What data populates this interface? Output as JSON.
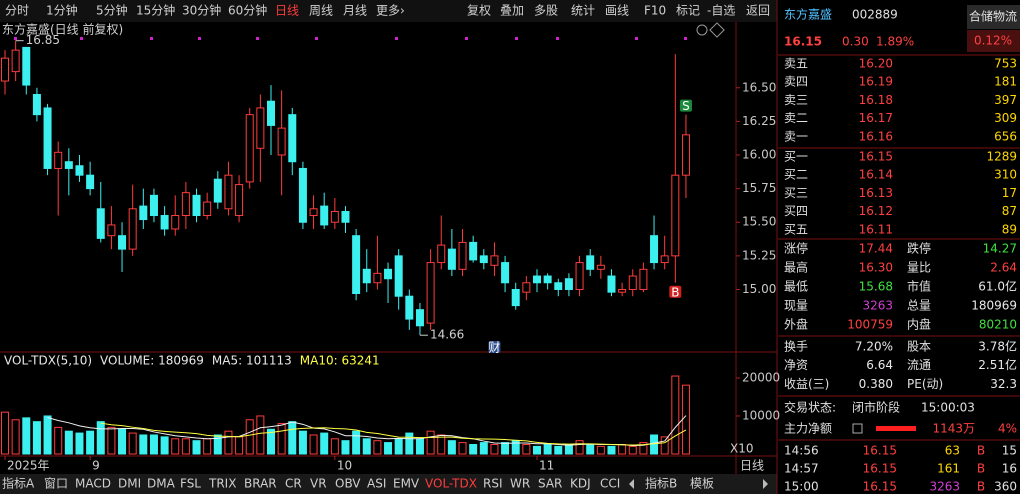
{
  "toolbar": {
    "periods": [
      "分时",
      "1分钟",
      "5分钟",
      "15分钟",
      "30分钟",
      "60分钟",
      "日线",
      "周线",
      "月线",
      "更多›"
    ],
    "active": 6,
    "tools": [
      "复权",
      "叠加",
      "多股",
      "统计",
      "画线",
      "F10",
      "标记",
      "-自选",
      "返回"
    ]
  },
  "chart_data": [
    {
      "type": "candlestick",
      "title": "东方嘉盛(日线 前复权)",
      "up_color": "#ff3c3c",
      "down_color": "#3cf0f0",
      "categories": [
        "2025年",
        null,
        null,
        null,
        null,
        null,
        null,
        null,
        "9",
        null,
        null,
        null,
        null,
        null,
        null,
        null,
        null,
        null,
        null,
        null,
        null,
        null,
        null,
        null,
        null,
        null,
        null,
        null,
        null,
        null,
        null,
        "10",
        null,
        null,
        null,
        null,
        null,
        null,
        null,
        null,
        null,
        null,
        null,
        null,
        null,
        null,
        null,
        null,
        null,
        null,
        "11",
        null,
        null,
        null,
        null,
        null,
        null,
        null,
        null,
        null,
        null,
        null,
        null,
        null,
        null
      ],
      "open": [
        16.55,
        16.62,
        16.8,
        16.45,
        16.35,
        15.9,
        15.95,
        15.92,
        15.85,
        15.6,
        15.4,
        15.4,
        15.3,
        15.62,
        15.7,
        15.55,
        15.45,
        15.55,
        15.7,
        15.55,
        15.82,
        15.6,
        15.55,
        15.8,
        16.05,
        16.4,
        16.0,
        16.3,
        15.9,
        15.55,
        15.62,
        15.5,
        15.58,
        15.4,
        15.15,
        15.05,
        15.15,
        15.25,
        14.95,
        14.85,
        14.75,
        15.2,
        15.3,
        15.15,
        15.35,
        15.25,
        15.18,
        15.2,
        15.0,
        14.98,
        15.1,
        15.1,
        15.05,
        15.08,
        15.0,
        15.25,
        15.15,
        15.1,
        14.98,
        15.0,
        15.0,
        15.4,
        15.2,
        15.25,
        15.85
      ],
      "high": [
        16.78,
        16.85,
        16.8,
        16.5,
        16.38,
        16.1,
        16.05,
        16.0,
        15.95,
        15.8,
        15.62,
        15.5,
        15.78,
        15.75,
        15.75,
        15.62,
        15.7,
        15.8,
        15.75,
        15.72,
        15.88,
        15.95,
        15.85,
        16.35,
        16.45,
        16.52,
        16.48,
        16.35,
        15.95,
        15.7,
        15.72,
        15.68,
        15.62,
        15.45,
        15.3,
        15.4,
        15.2,
        15.3,
        15.0,
        14.9,
        15.3,
        15.55,
        15.45,
        15.45,
        15.4,
        15.3,
        15.35,
        15.25,
        15.05,
        15.1,
        15.15,
        15.12,
        15.08,
        15.12,
        15.25,
        15.3,
        15.25,
        15.15,
        15.05,
        15.15,
        15.2,
        15.55,
        15.4,
        16.75,
        16.3
      ],
      "low": [
        16.45,
        16.55,
        16.45,
        16.25,
        15.85,
        15.55,
        15.7,
        15.8,
        15.7,
        15.35,
        15.3,
        15.13,
        15.25,
        15.45,
        15.5,
        15.4,
        15.4,
        15.45,
        15.5,
        15.52,
        15.6,
        15.55,
        15.5,
        15.75,
        15.8,
        16.0,
        15.7,
        15.85,
        15.45,
        15.45,
        15.45,
        15.45,
        15.42,
        14.92,
        14.98,
        15.0,
        14.9,
        14.85,
        14.7,
        14.66,
        14.7,
        15.15,
        15.1,
        15.1,
        15.2,
        15.15,
        15.1,
        14.98,
        14.85,
        14.92,
        14.98,
        15.0,
        14.95,
        14.95,
        14.95,
        15.1,
        15.08,
        14.95,
        14.95,
        14.95,
        14.98,
        15.15,
        15.15,
        15.05,
        15.68
      ],
      "close": [
        16.72,
        16.78,
        16.52,
        16.3,
        15.9,
        16.02,
        15.9,
        15.85,
        15.75,
        15.38,
        15.48,
        15.3,
        15.6,
        15.52,
        15.55,
        15.45,
        15.55,
        15.72,
        15.55,
        15.65,
        15.65,
        15.85,
        15.78,
        16.3,
        16.35,
        16.22,
        16.2,
        15.95,
        15.5,
        15.6,
        15.48,
        15.58,
        15.5,
        14.97,
        15.05,
        15.12,
        15.08,
        14.95,
        14.78,
        14.73,
        15.2,
        15.33,
        15.15,
        15.35,
        15.22,
        15.2,
        15.25,
        15.05,
        14.88,
        15.05,
        15.05,
        15.05,
        15.0,
        15.0,
        15.2,
        15.15,
        15.18,
        14.98,
        15.0,
        15.1,
        15.15,
        15.2,
        15.25,
        15.85,
        16.15
      ],
      "ylim": [
        14.55,
        16.87
      ],
      "yticks": [
        {
          "value": 16.5,
          "label": "16.50"
        },
        16.25,
        {
          "value": 16,
          "label": "16.00"
        },
        15.75,
        {
          "value": 15.5,
          "label": "15.50"
        },
        15.25,
        {
          "value": 15,
          "label": "15.00"
        }
      ],
      "annotations": [
        {
          "index": 1,
          "value": 16.85,
          "at": "high"
        },
        {
          "index": 39,
          "value": 14.66,
          "at": "low"
        }
      ],
      "markers": [
        {
          "label": "S",
          "index": 64,
          "at": "high",
          "color": "#1a8a3a"
        },
        {
          "label": "B",
          "index": 63,
          "at": "low",
          "color": "#d22020"
        },
        {
          "label": "财",
          "index": 46,
          "at": "bottom",
          "color": "#2a4a8a"
        }
      ]
    },
    {
      "type": "bar",
      "title": "VOL-TDX(5,10)",
      "readouts": [
        {
          "text": "VOLUME: 180969",
          "color": "#e8e8e8"
        },
        {
          "text": "MA5: 101113",
          "color": "#e8e8e8"
        },
        {
          "text": "MA10: 63241",
          "color": "#ffff40"
        }
      ],
      "values": [
        11000,
        9000,
        9500,
        8500,
        10000,
        7000,
        6000,
        5500,
        6000,
        8500,
        7000,
        6500,
        5500,
        5000,
        5000,
        4500,
        4000,
        4000,
        3500,
        4000,
        5000,
        6000,
        4500,
        9000,
        10000,
        6500,
        8000,
        8500,
        6000,
        5000,
        5500,
        4000,
        3500,
        6000,
        4000,
        3500,
        3000,
        4000,
        5500,
        4000,
        6000,
        5000,
        3500,
        3000,
        2500,
        3000,
        2500,
        3000,
        3500,
        2500,
        2000,
        2500,
        2000,
        2500,
        3500,
        2500,
        2000,
        2000,
        2500,
        2000,
        3000,
        5000,
        4500,
        20500,
        18097
      ],
      "series": [
        {
          "name": "MA5",
          "color": "#f0f0f0",
          "values": [
            null,
            null,
            null,
            null,
            9600,
            8800,
            8200,
            7400,
            6900,
            6600,
            6600,
            6700,
            6700,
            6500,
            5800,
            5300,
            4800,
            4500,
            4200,
            4000,
            4100,
            4500,
            4600,
            5700,
            6900,
            7200,
            7600,
            8400,
            7800,
            6800,
            6600,
            5800,
            4800,
            4800,
            4600,
            4200,
            4000,
            4100,
            4000,
            4000,
            4500,
            4900,
            4800,
            4300,
            4000,
            3400,
            2900,
            2800,
            2900,
            2900,
            2700,
            2700,
            2500,
            2300,
            2500,
            2600,
            2500,
            2500,
            2500,
            2200,
            2300,
            2900,
            3400,
            7000,
            10111
          ]
        },
        {
          "name": "MA10",
          "color": "#ffff40",
          "values": [
            null,
            null,
            null,
            null,
            null,
            null,
            null,
            null,
            null,
            8100,
            7700,
            7450,
            7050,
            6700,
            6200,
            5950,
            5750,
            5600,
            5350,
            4900,
            4700,
            4650,
            4550,
            4950,
            5450,
            5650,
            6050,
            6500,
            6750,
            6850,
            6900,
            6700,
            6600,
            6300,
            5700,
            5400,
            4900,
            4450,
            4400,
            4300,
            4350,
            4450,
            4450,
            4150,
            4000,
            3950,
            3900,
            3800,
            3600,
            3450,
            3050,
            2800,
            2650,
            2600,
            2700,
            2650,
            2600,
            2500,
            2400,
            2350,
            2450,
            2700,
            2950,
            4750,
            6324
          ]
        }
      ],
      "ylim": [
        0,
        23400
      ],
      "yticks": [
        20000,
        10000
      ],
      "scale_label": "X10",
      "period_label": "日线"
    }
  ],
  "tabs": {
    "items": [
      "指标A",
      "窗口",
      "MACD",
      "DMI",
      "DMA",
      "FSL",
      "TRIX",
      "BRAR",
      "CR",
      "VR",
      "OBV",
      "ASI",
      "EMV",
      "VOL-TDX",
      "RSI",
      "WR",
      "SAR",
      "KDJ",
      "CCI",
      "指标B",
      "模板"
    ],
    "active": 13
  },
  "quote": {
    "name": "东方嘉盛",
    "code": "002889",
    "sector": "合储物流",
    "sector_change": "0.12%",
    "price": "16.15",
    "change": "0.30",
    "change_pct": "1.89%",
    "asks": [
      {
        "label": "卖五",
        "price": "16.20",
        "volume": "753"
      },
      {
        "label": "卖四",
        "price": "16.19",
        "volume": "181"
      },
      {
        "label": "卖三",
        "price": "16.18",
        "volume": "397"
      },
      {
        "label": "卖二",
        "price": "16.17",
        "volume": "309"
      },
      {
        "label": "卖一",
        "price": "16.16",
        "volume": "656"
      }
    ],
    "bids": [
      {
        "label": "买一",
        "price": "16.15",
        "volume": "1289"
      },
      {
        "label": "买二",
        "price": "16.14",
        "volume": "310"
      },
      {
        "label": "买三",
        "price": "16.13",
        "volume": "17"
      },
      {
        "label": "买四",
        "price": "16.12",
        "volume": "87"
      },
      {
        "label": "买五",
        "price": "16.11",
        "volume": "89"
      }
    ],
    "stats": [
      [
        {
          "label": "涨停",
          "value": "17.44",
          "color": "#ff4040"
        },
        {
          "label": "跌停",
          "value": "14.27",
          "color": "#40e040"
        }
      ],
      [
        {
          "label": "最高",
          "value": "16.30",
          "color": "#ff4040"
        },
        {
          "label": "量比",
          "value": "2.64",
          "color": "#ff4040"
        }
      ],
      [
        {
          "label": "最低",
          "value": "15.68",
          "color": "#40e040"
        },
        {
          "label": "市值",
          "value": "61.0亿",
          "color": "#e8e8e8"
        }
      ],
      [
        {
          "label": "现量",
          "value": "3263",
          "color": "#d040d0"
        },
        {
          "label": "总量",
          "value": "180969",
          "color": "#e8e8e8"
        }
      ],
      [
        {
          "label": "外盘",
          "value": "100759",
          "color": "#ff4040"
        },
        {
          "label": "内盘",
          "value": "80210",
          "color": "#40e040"
        }
      ],
      [
        {
          "label": "换手",
          "value": "7.20%",
          "color": "#e8e8e8"
        },
        {
          "label": "股本",
          "value": "3.78亿",
          "color": "#e8e8e8"
        }
      ],
      [
        {
          "label": "净资",
          "value": "6.64",
          "color": "#e8e8e8"
        },
        {
          "label": "流通",
          "value": "2.51亿",
          "color": "#e8e8e8"
        }
      ],
      [
        {
          "label": "收益(三)",
          "value": "0.380",
          "color": "#e8e8e8"
        },
        {
          "label": "PE(动)",
          "value": "32.3",
          "color": "#e8e8e8"
        }
      ]
    ],
    "status_label": "交易状态:",
    "status": "闭市阶段",
    "status_time": "15:00:03",
    "flow_label": "主力净额",
    "flow": "1143万",
    "flow_pct": "4%",
    "ticks": [
      {
        "time": "14:56",
        "price": "16.15",
        "volume": "63",
        "volume_color": "#ffd700",
        "side": "B",
        "count": "15"
      },
      {
        "time": "14:57",
        "price": "16.15",
        "volume": "161",
        "volume_color": "#ffd700",
        "side": "B",
        "count": "16"
      },
      {
        "time": "15:00",
        "price": "16.15",
        "volume": "3263",
        "volume_color": "#d040d0",
        "side": "B",
        "count": "360"
      }
    ]
  }
}
